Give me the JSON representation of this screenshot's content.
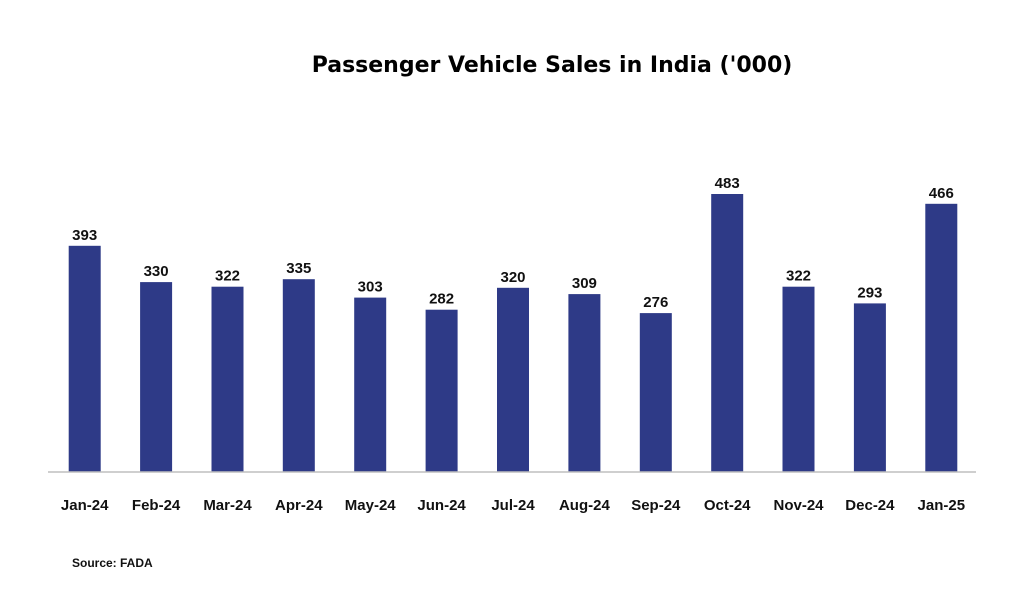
{
  "chart_data": {
    "type": "bar",
    "title": "Passenger Vehicle Sales in India ('000)",
    "categories": [
      "Jan-24",
      "Feb-24",
      "Mar-24",
      "Apr-24",
      "May-24",
      "Jun-24",
      "Jul-24",
      "Aug-24",
      "Sep-24",
      "Oct-24",
      "Nov-24",
      "Dec-24",
      "Jan-25"
    ],
    "values": [
      393,
      330,
      322,
      335,
      303,
      282,
      320,
      309,
      276,
      483,
      322,
      293,
      466
    ],
    "value_labels": [
      "393",
      "330",
      "322",
      "335",
      "303",
      "282",
      "320",
      "309",
      "276",
      "483",
      "322",
      "293",
      "466"
    ],
    "xlabel": "",
    "ylabel": "",
    "ylim": [
      0,
      600
    ],
    "grid": false,
    "legend": "none",
    "bar_color": "#2e3a87",
    "axis_color": "#bfbfbf"
  },
  "source": "Source: FADA"
}
